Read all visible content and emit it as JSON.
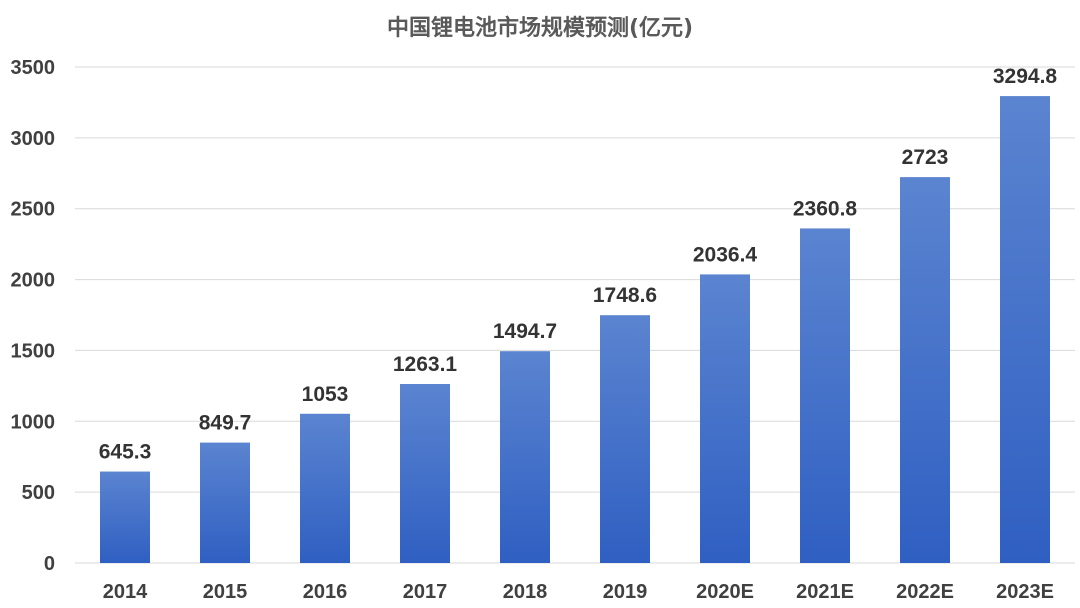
{
  "chart_data": {
    "type": "bar",
    "title": "中国锂电池市场规模预测(亿元)",
    "categories": [
      "2014",
      "2015",
      "2016",
      "2017",
      "2018",
      "2019",
      "2020E",
      "2021E",
      "2022E",
      "2023E"
    ],
    "values": [
      645.3,
      849.7,
      1053,
      1263.1,
      1494.7,
      1748.6,
      2036.4,
      2360.8,
      2723,
      3294.8
    ],
    "value_labels": [
      "645.3",
      "849.7",
      "1053",
      "1263.1",
      "1494.7",
      "1748.6",
      "2036.4",
      "2360.8",
      "2723",
      "3294.8"
    ],
    "ylim": [
      0,
      3500
    ],
    "yticks": [
      0,
      500,
      1000,
      1500,
      2000,
      2500,
      3000,
      3500
    ],
    "ytick_labels": [
      "0",
      "500",
      "1000",
      "1500",
      "2000",
      "2500",
      "3000",
      "3500"
    ],
    "grid": true,
    "legend": "none",
    "colors": {
      "bar_top": "#5b84d0",
      "bar_bottom": "#2f5fc2"
    }
  }
}
